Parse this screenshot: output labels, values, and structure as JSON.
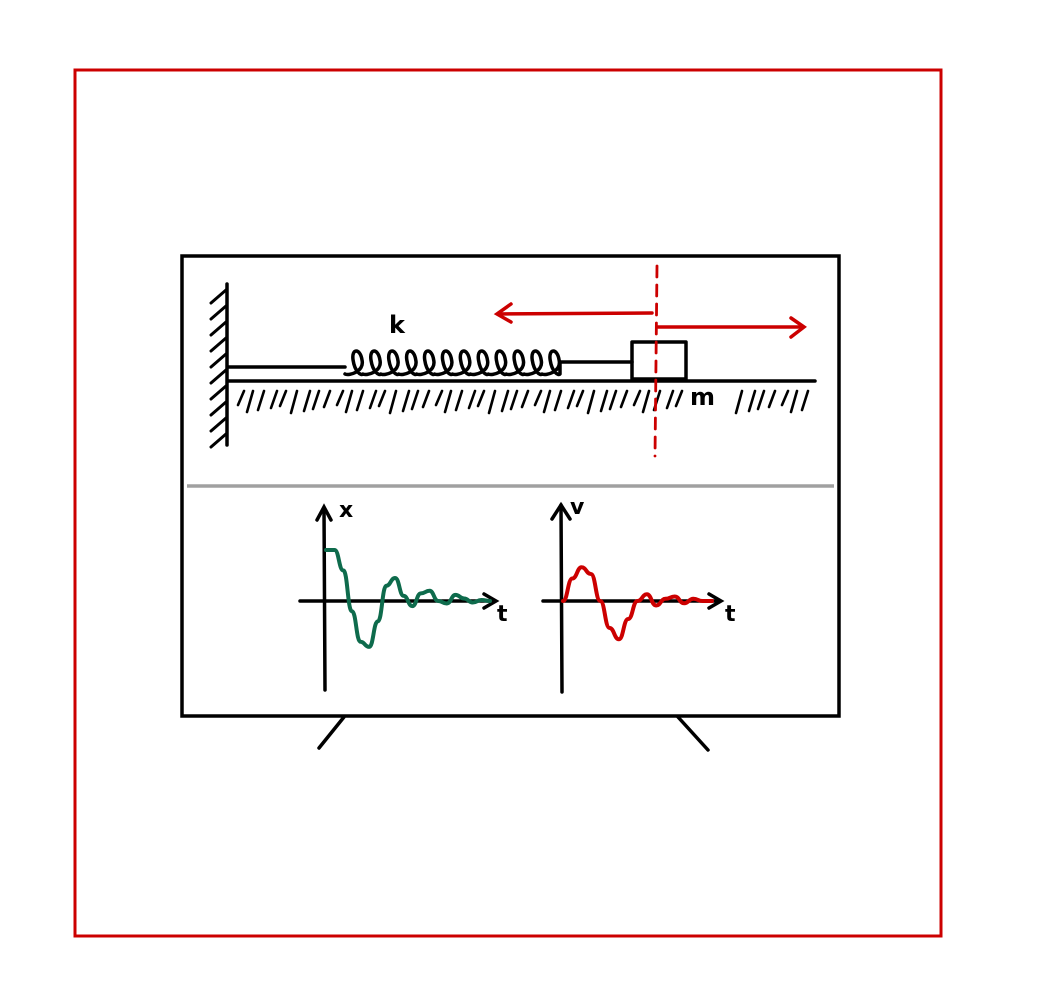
{
  "labels": {
    "spring_constant": "k",
    "mass": "m",
    "x_axis_label_left": "t",
    "y_axis_label_left": "x",
    "x_axis_label_right": "t",
    "y_axis_label_right": "v"
  },
  "colors": {
    "frame": "#cc0000",
    "ink": "#000000",
    "divider": "#a0a0a0",
    "position_curve": "#0e6b4c",
    "velocity_curve": "#cc0000",
    "arrows": "#cc0000"
  },
  "chart_data": [
    {
      "type": "line",
      "title": "",
      "xlabel": "t",
      "ylabel": "x",
      "series": [
        {
          "values": [
            1.0,
            1.0,
            0.6,
            -0.2,
            -0.8,
            -0.9,
            -0.4,
            0.3,
            0.45,
            0.1,
            -0.1,
            0.15,
            0.2,
            0.0,
            -0.05,
            0.12,
            0.05,
            -0.03,
            0.02,
            0.0
          ]
        }
      ]
    },
    {
      "type": "line",
      "title": "",
      "xlabel": "t",
      "ylabel": "v",
      "series": [
        {
          "values": [
            0.0,
            0.5,
            0.75,
            0.6,
            0.0,
            -0.6,
            -0.85,
            -0.4,
            0.0,
            0.15,
            -0.1,
            0.05,
            0.1,
            -0.05,
            0.05,
            0.0,
            0.0
          ]
        }
      ]
    }
  ]
}
